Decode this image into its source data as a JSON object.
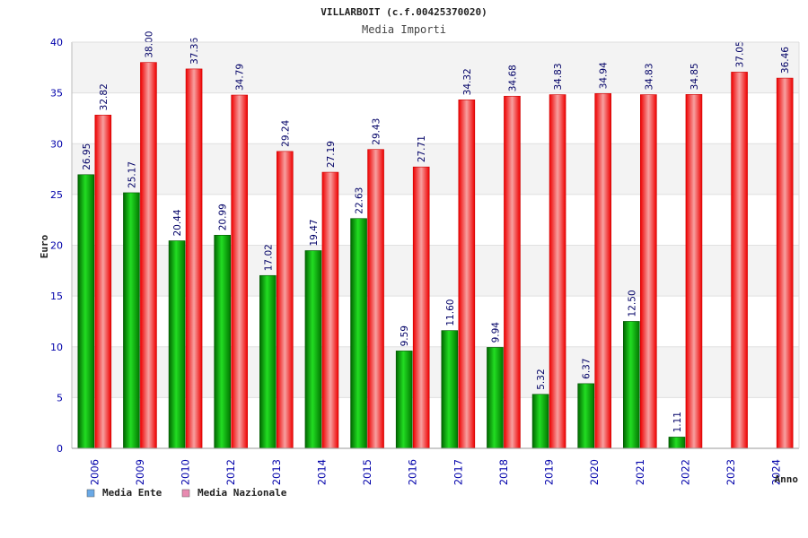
{
  "chart_data": {
    "type": "bar",
    "title": "VILLARBOIT (c.f.00425370020)",
    "subtitle": "Media Importi",
    "ylabel": "Euro",
    "xlabel": "Anno",
    "ylim": [
      0,
      40
    ],
    "yticks": [
      0,
      5,
      10,
      15,
      20,
      25,
      30,
      35,
      40
    ],
    "grid": true,
    "legend_position": "bottom-left",
    "categories": [
      "2006",
      "2009",
      "2010",
      "2012",
      "2013",
      "2014",
      "2015",
      "2016",
      "2017",
      "2018",
      "2019",
      "2020",
      "2021",
      "2022",
      "2023",
      "2024"
    ],
    "series": [
      {
        "name": "Media Ente",
        "color": "#00aa00",
        "legend_color": "#6aa9e6",
        "values": [
          26.95,
          25.17,
          20.44,
          20.99,
          17.02,
          19.47,
          22.63,
          9.59,
          11.6,
          9.94,
          5.32,
          6.37,
          12.5,
          1.11,
          null,
          null
        ],
        "labels": [
          "26.95",
          "25.17",
          "20.44",
          "20.99",
          "17.02",
          "19.47",
          "22.63",
          "9.59",
          "11.60",
          "9.94",
          "5.32",
          "6.37",
          "12.50",
          "1.11",
          null,
          null
        ]
      },
      {
        "name": "Media Nazionale",
        "color": "#ee1111",
        "legend_color": "#e88ab0",
        "values": [
          32.82,
          38.0,
          37.36,
          34.79,
          29.24,
          27.19,
          29.43,
          27.71,
          34.32,
          34.68,
          34.83,
          34.94,
          34.83,
          34.85,
          37.05,
          36.46
        ],
        "labels": [
          "32.82",
          "38.00",
          "37.36",
          "34.79",
          "29.24",
          "27.19",
          "29.43",
          "27.71",
          "34.32",
          "34.68",
          "34.83",
          "34.94",
          "34.83",
          "34.85",
          "37.05",
          "36.46"
        ]
      }
    ]
  }
}
